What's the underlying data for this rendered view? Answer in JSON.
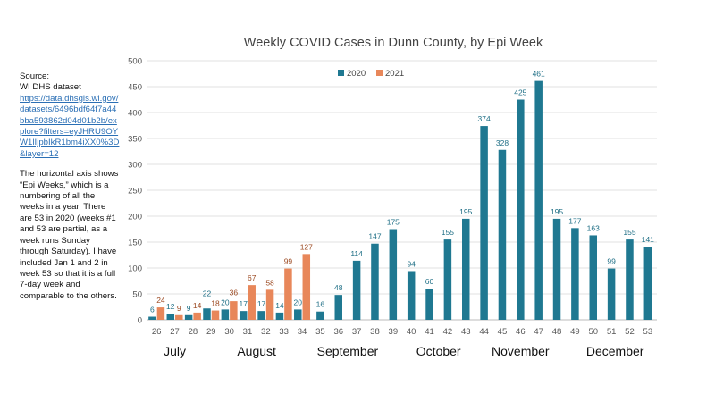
{
  "sidebar": {
    "source_label": "Source:",
    "dataset_label": "WI DHS dataset",
    "link": "https://data.dhsgis.wi.gov/datasets/6496bdf64f7a44bba593862d04d01b2b/explore?filters=eyJHRU9OYW1lIjpbIkR1bm4iXX0%3D&layer=12",
    "note": "The horizontal axis shows “Epi Weeks,” which is a numbering of all the weeks in a year.  There are 53 in 2020 (weeks #1 and 53 are partial, as a week runs Sunday through Saturday).  I have included Jan 1 and 2 in week 53 so that it is a full 7-day week and comparable to the others."
  },
  "chart_data": {
    "type": "bar",
    "title": "Weekly COVID Cases in Dunn County, by Epi Week",
    "xlabel": "",
    "ylabel": "",
    "ylim": [
      0,
      500
    ],
    "yticks": [
      0,
      50,
      100,
      150,
      200,
      250,
      300,
      350,
      400,
      450,
      500
    ],
    "grid": true,
    "legend_position": "top-center",
    "categories": [
      "26",
      "27",
      "28",
      "29",
      "30",
      "31",
      "32",
      "33",
      "34",
      "35",
      "36",
      "37",
      "38",
      "39",
      "40",
      "41",
      "42",
      "43",
      "44",
      "45",
      "46",
      "47",
      "48",
      "49",
      "50",
      "51",
      "52",
      "53"
    ],
    "series": [
      {
        "name": "2020",
        "color": "#1f7891",
        "label_color": "#1f6f86",
        "values": [
          6,
          12,
          9,
          22,
          20,
          17,
          17,
          14,
          20,
          16,
          48,
          114,
          147,
          175,
          94,
          60,
          155,
          195,
          374,
          328,
          425,
          461,
          195,
          177,
          163,
          99,
          155,
          141
        ]
      },
      {
        "name": "2021",
        "color": "#e8875a",
        "label_color": "#9c4a22",
        "values": [
          24,
          9,
          14,
          18,
          36,
          67,
          58,
          99,
          127,
          null,
          null,
          null,
          null,
          null,
          null,
          null,
          null,
          null,
          null,
          null,
          null,
          null,
          null,
          null,
          null,
          null,
          null,
          null
        ]
      }
    ],
    "month_labels": [
      {
        "label": "July",
        "center_week": "27"
      },
      {
        "label": "August",
        "center_week": "31.5"
      },
      {
        "label": "September",
        "center_week": "36.5"
      },
      {
        "label": "October",
        "center_week": "41.5"
      },
      {
        "label": "November",
        "center_week": "46"
      },
      {
        "label": "December",
        "center_week": "51.2"
      }
    ]
  }
}
